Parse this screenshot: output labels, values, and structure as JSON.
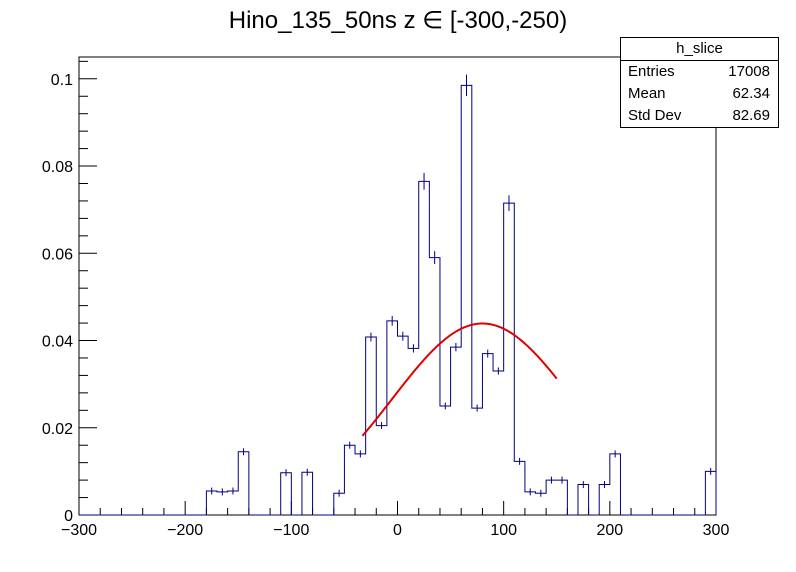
{
  "chart_data": {
    "type": "histogram",
    "title": "Hino_135_50ns z  ∈ [-300,-250)",
    "xlabel": "",
    "ylabel": "",
    "xlim": [
      -300,
      300
    ],
    "ylim": [
      0,
      0.105
    ],
    "x_ticks": [
      -300,
      -200,
      -100,
      0,
      100,
      200,
      300
    ],
    "x_tick_labels": [
      "−300",
      "−200",
      "−100",
      "0",
      "100",
      "200",
      "300"
    ],
    "y_ticks": [
      0,
      0.02,
      0.04,
      0.06,
      0.08,
      0.1
    ],
    "y_tick_labels": [
      "0",
      "0.02",
      "0.04",
      "0.06",
      "0.08",
      "0.1"
    ],
    "bin_width": 10,
    "bin_edges_start": -300,
    "values": [
      0,
      0,
      0,
      0,
      0,
      0,
      0,
      0,
      0,
      0,
      0,
      0,
      0.0055,
      0.0053,
      0.0055,
      0.0145,
      0,
      0,
      0,
      0.0097,
      0,
      0.0098,
      0,
      0,
      0.005,
      0.016,
      0.014,
      0.0408,
      0.0205,
      0.0445,
      0.041,
      0.0382,
      0.0765,
      0.059,
      0.025,
      0.0385,
      0.0985,
      0.0245,
      0.037,
      0.033,
      0.0715,
      0.0123,
      0.0053,
      0.005,
      0.008,
      0.008,
      0,
      0.007,
      0,
      0.007,
      0.014,
      0,
      0,
      0,
      0,
      0,
      0,
      0,
      0,
      0.01
    ],
    "fit": {
      "color": "#e00000",
      "x_range": [
        -33,
        150
      ],
      "amplitude": 0.0439,
      "mean": 80,
      "sigma": 85
    },
    "stats_box": {
      "name": "h_slice",
      "rows": [
        {
          "label": "Entries",
          "value": "17008"
        },
        {
          "label": "Mean",
          "value": "62.34"
        },
        {
          "label": "Std Dev",
          "value": "82.69"
        }
      ]
    },
    "colors": {
      "histogram": "#000080",
      "axis": "#000000"
    }
  }
}
